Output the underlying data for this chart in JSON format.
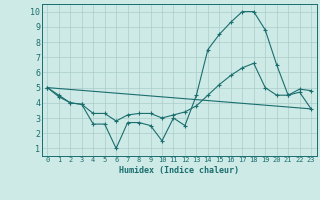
{
  "xlabel": "Humidex (Indice chaleur)",
  "ylabel": "",
  "xlim": [
    -0.5,
    23.5
  ],
  "ylim": [
    0.5,
    10.5
  ],
  "xticks": [
    0,
    1,
    2,
    3,
    4,
    5,
    6,
    7,
    8,
    9,
    10,
    11,
    12,
    13,
    14,
    15,
    16,
    17,
    18,
    19,
    20,
    21,
    22,
    23
  ],
  "yticks": [
    1,
    2,
    3,
    4,
    5,
    6,
    7,
    8,
    9,
    10
  ],
  "bg_color": "#ceeae7",
  "grid_color": "#aaccca",
  "line_color": "#1a6e6e",
  "line1_x": [
    0,
    1,
    2,
    3,
    4,
    5,
    6,
    7,
    8,
    9,
    10,
    11,
    12,
    13,
    14,
    15,
    16,
    17,
    18,
    19,
    20,
    21,
    22,
    23
  ],
  "line1_y": [
    5.0,
    4.4,
    4.0,
    3.9,
    2.6,
    2.6,
    1.0,
    2.7,
    2.7,
    2.5,
    1.5,
    3.0,
    2.5,
    4.5,
    7.5,
    8.5,
    9.3,
    10.0,
    10.0,
    8.8,
    6.5,
    4.5,
    4.9,
    4.8
  ],
  "line2_x": [
    0,
    1,
    2,
    3,
    4,
    5,
    6,
    7,
    8,
    9,
    10,
    11,
    12,
    13,
    14,
    15,
    16,
    17,
    18,
    19,
    20,
    21,
    22,
    23
  ],
  "line2_y": [
    5.0,
    4.5,
    4.0,
    3.9,
    3.3,
    3.3,
    2.8,
    3.2,
    3.3,
    3.3,
    3.0,
    3.2,
    3.4,
    3.8,
    4.5,
    5.2,
    5.8,
    6.3,
    6.6,
    5.0,
    4.5,
    4.5,
    4.7,
    3.6
  ],
  "line3_x": [
    0,
    23
  ],
  "line3_y": [
    5.0,
    3.6
  ]
}
